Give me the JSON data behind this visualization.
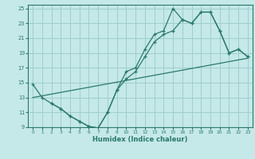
{
  "xlabel": "Humidex (Indice chaleur)",
  "bg_color": "#c5e8e8",
  "grid_color": "#9ecece",
  "line_color": "#2a7a6a",
  "xlim": [
    -0.5,
    23.5
  ],
  "ylim": [
    9,
    25.5
  ],
  "xticks": [
    0,
    1,
    2,
    3,
    4,
    5,
    6,
    7,
    8,
    9,
    10,
    11,
    12,
    13,
    14,
    15,
    16,
    17,
    18,
    19,
    20,
    21,
    22,
    23
  ],
  "yticks": [
    9,
    11,
    13,
    15,
    17,
    19,
    21,
    23,
    25
  ],
  "line1_x": [
    0,
    1,
    2,
    3,
    4,
    5,
    6,
    7,
    8,
    9,
    10,
    11,
    12,
    13,
    14,
    15,
    16,
    17,
    18,
    19,
    20,
    21,
    22,
    23
  ],
  "line1_y": [
    14.8,
    13.0,
    12.2,
    11.5,
    10.5,
    9.8,
    9.1,
    8.9,
    11.0,
    14.0,
    16.5,
    17.0,
    19.5,
    21.5,
    22.0,
    25.0,
    23.5,
    23.0,
    24.5,
    24.5,
    22.0,
    19.0,
    19.5,
    18.5
  ],
  "line2_x": [
    0,
    23
  ],
  "line2_y": [
    13.0,
    18.3
  ],
  "line3_x": [
    2,
    3,
    4,
    5,
    6,
    7,
    8,
    9,
    10,
    11,
    12,
    13,
    14,
    15,
    16,
    17,
    18,
    19,
    20,
    21,
    22,
    23
  ],
  "line3_y": [
    12.2,
    11.5,
    10.5,
    9.8,
    9.1,
    8.9,
    11.0,
    14.0,
    15.5,
    16.5,
    18.5,
    20.5,
    21.5,
    22.0,
    23.5,
    23.0,
    24.5,
    24.5,
    22.0,
    19.0,
    19.5,
    18.5
  ]
}
